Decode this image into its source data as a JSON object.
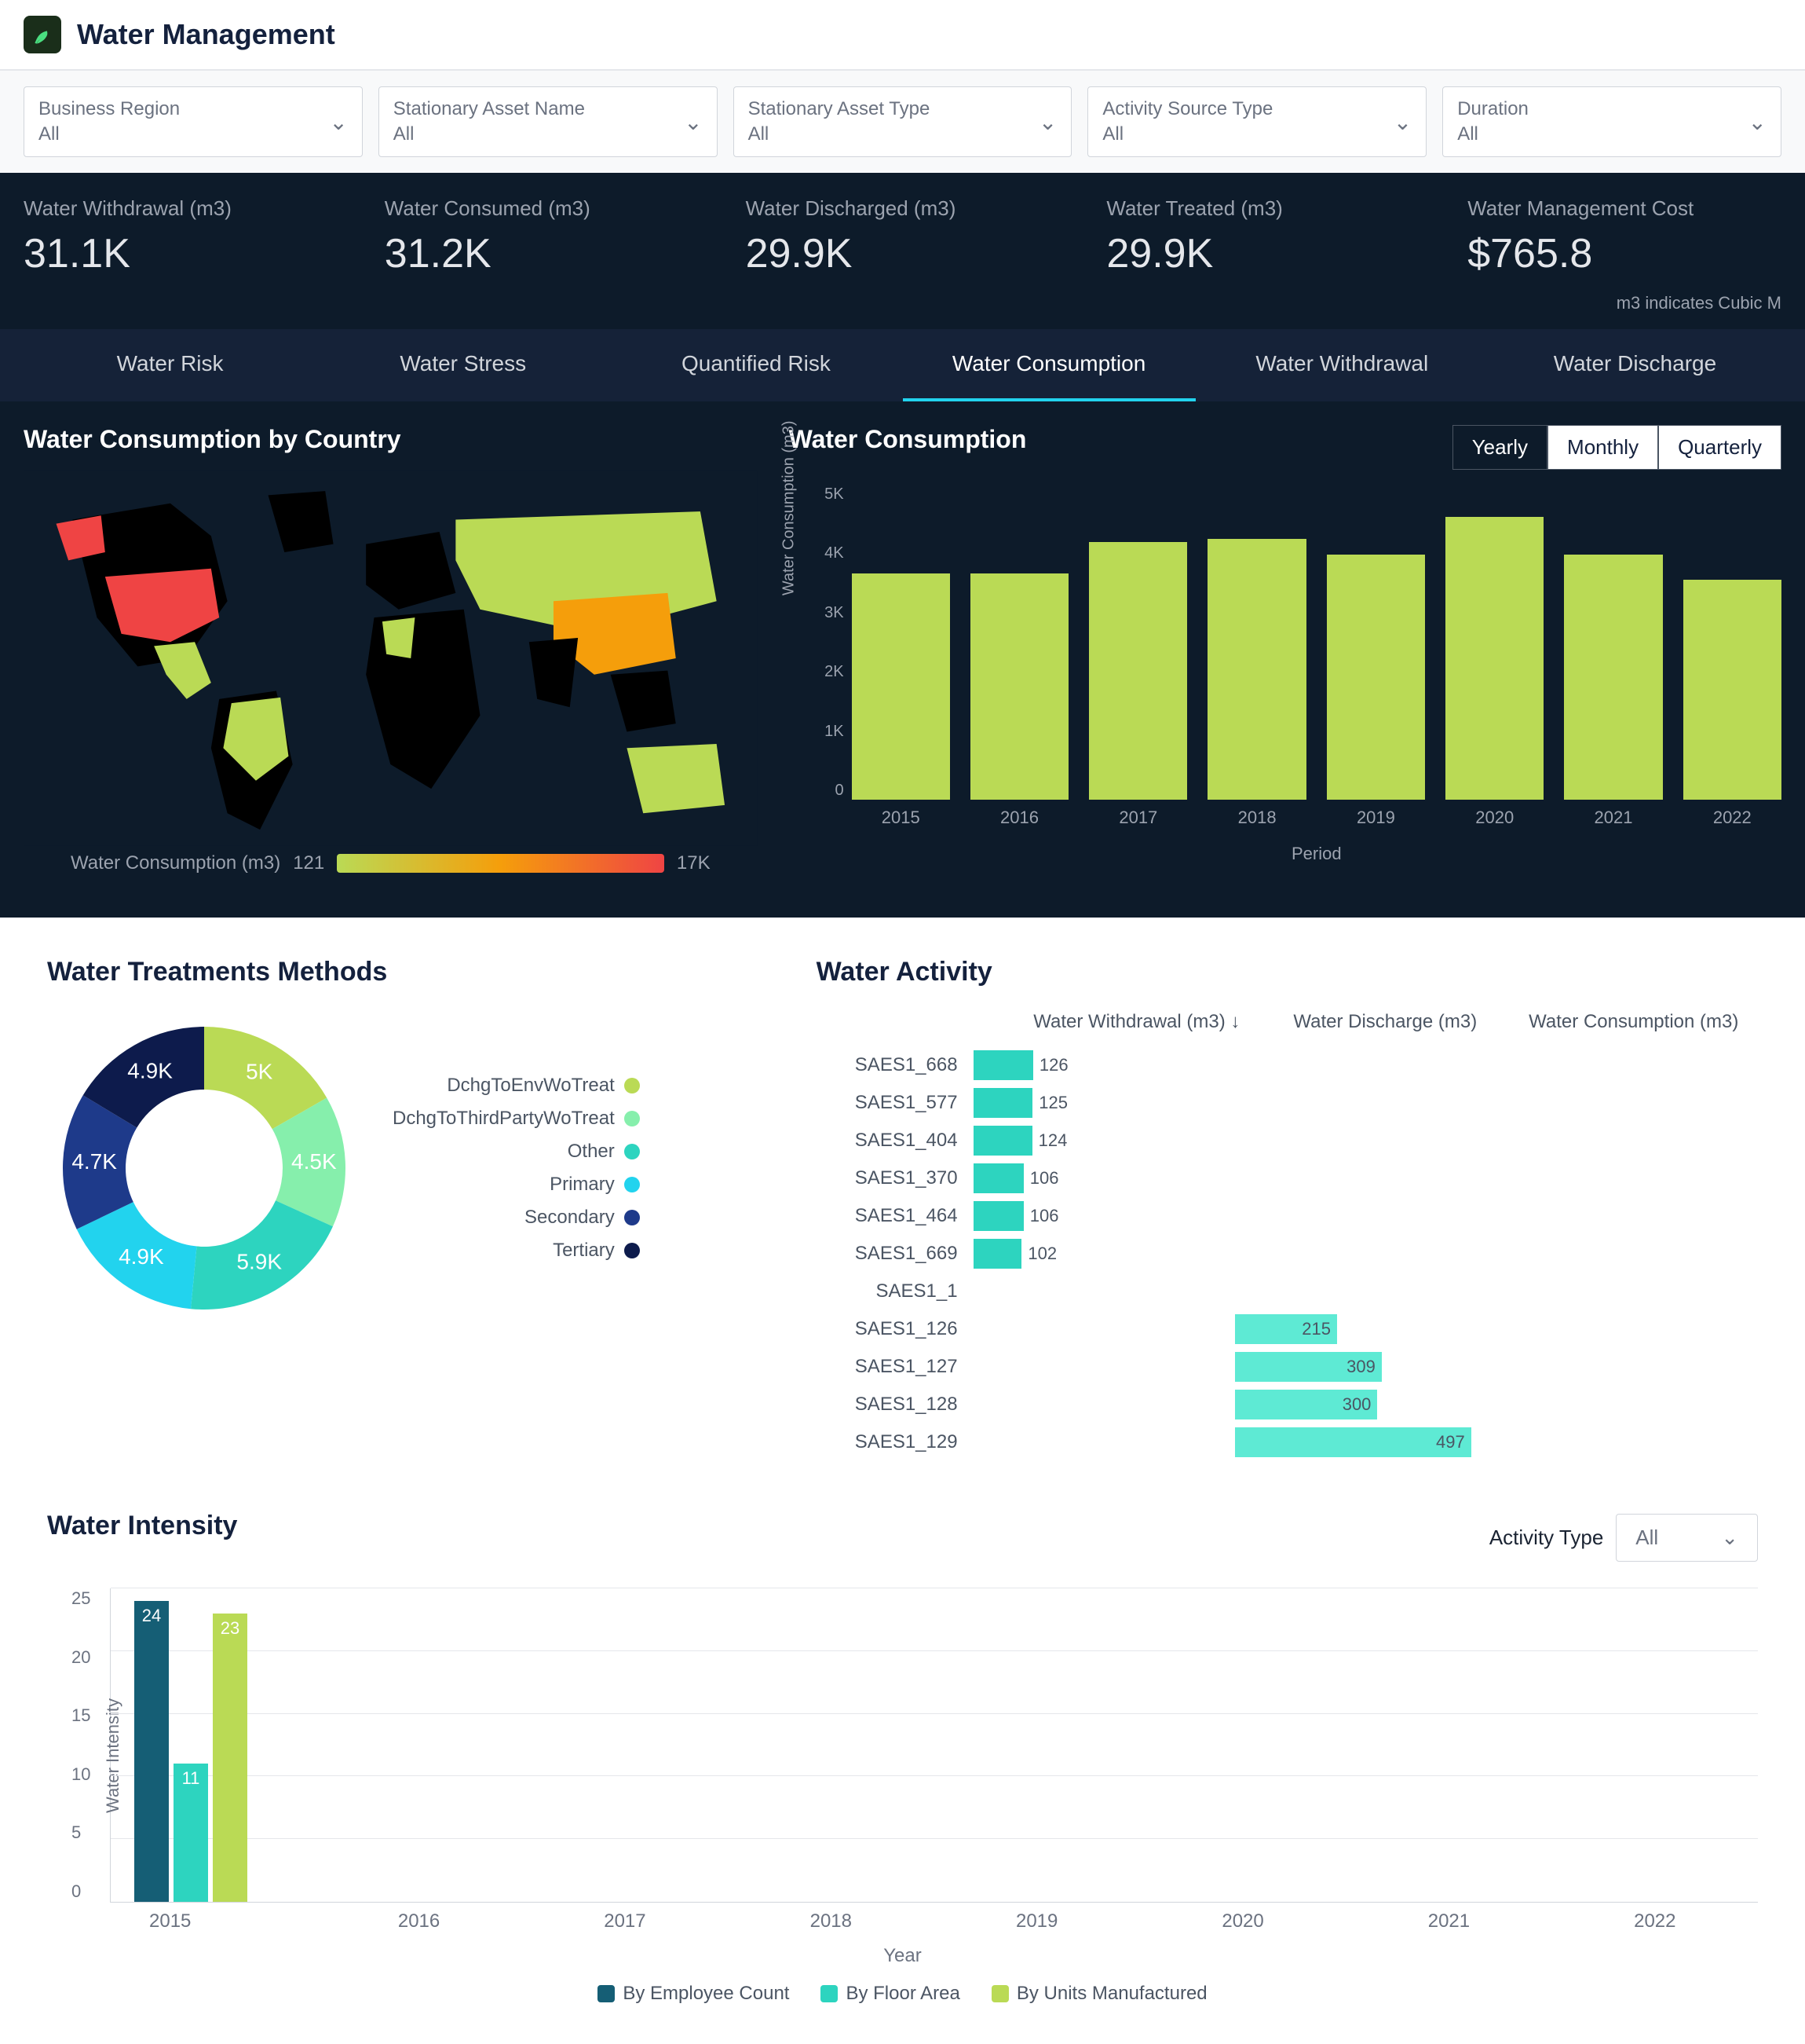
{
  "header": {
    "title": "Water Management"
  },
  "filters": [
    {
      "label": "Business Region",
      "value": "All"
    },
    {
      "label": "Stationary Asset Name",
      "value": "All"
    },
    {
      "label": "Stationary Asset Type",
      "value": "All"
    },
    {
      "label": "Activity Source Type",
      "value": "All"
    },
    {
      "label": "Duration",
      "value": "All"
    }
  ],
  "metrics": [
    {
      "label": "Water Withdrawal (m3)",
      "value": "31.1K"
    },
    {
      "label": "Water Consumed (m3)",
      "value": "31.2K"
    },
    {
      "label": "Water Discharged (m3)",
      "value": "29.9K"
    },
    {
      "label": "Water Treated (m3)",
      "value": "29.9K"
    },
    {
      "label": "Water Management Cost",
      "value": "$765.8"
    }
  ],
  "metric_note": "m3 indicates Cubic M",
  "tabs": [
    "Water Risk",
    "Water Stress",
    "Quantified Risk",
    "Water Consumption",
    "Water Withdrawal",
    "Water Discharge"
  ],
  "active_tab_index": 3,
  "map": {
    "title": "Water Consumption by Country",
    "legend_label": "Water Consumption (m3)",
    "legend_min": "121",
    "legend_max": "17K",
    "low_color": "#bada55",
    "mid_color": "#f59e0b",
    "high_color": "#ef4444",
    "empty_color": "#000000"
  },
  "consumption_chart": {
    "title": "Water Consumption",
    "type": "bar",
    "toggles": [
      "Yearly",
      "Monthly",
      "Quarterly"
    ],
    "active_toggle": 0,
    "bar_color": "#bada55",
    "ylabel": "Water Consumption (m3)",
    "xtitle": "Period",
    "ymax": 5000,
    "yticks": [
      "0",
      "1K",
      "2K",
      "3K",
      "4K",
      "5K"
    ],
    "categories": [
      "2015",
      "2016",
      "2017",
      "2018",
      "2019",
      "2020",
      "2021",
      "2022"
    ],
    "values": [
      3600,
      3600,
      4100,
      4150,
      3900,
      4500,
      3900,
      3500
    ]
  },
  "donut": {
    "title": "Water Treatments Methods",
    "slices": [
      {
        "label": "DchgToEnvWoTreat",
        "value": "5K",
        "num": 5.0,
        "color": "#bada55"
      },
      {
        "label": "DchgToThirdPartyWoTreat",
        "value": "4.5K",
        "num": 4.5,
        "color": "#86efac"
      },
      {
        "label": "Other",
        "value": "5.9K",
        "num": 5.9,
        "color": "#2dd4bf"
      },
      {
        "label": "Primary",
        "value": "4.9K",
        "num": 4.9,
        "color": "#22d3ee"
      },
      {
        "label": "Secondary",
        "value": "4.7K",
        "num": 4.7,
        "color": "#1e3a8a"
      },
      {
        "label": "Tertiary",
        "value": "4.9K",
        "num": 4.9,
        "color": "#0d1b4c"
      }
    ]
  },
  "activity": {
    "title": "Water Activity",
    "columns": [
      "Water Withdrawal (m3) ↓",
      "Water Discharge (m3)",
      "Water Consumption (m3)"
    ],
    "withdrawal_color": "#2dd4bf",
    "discharge_color": "#5eead4",
    "max_withdrawal": 550,
    "max_discharge": 550,
    "rows": [
      {
        "label": "SAES1_668",
        "withdrawal": 126
      },
      {
        "label": "SAES1_577",
        "withdrawal": 125
      },
      {
        "label": "SAES1_404",
        "withdrawal": 124
      },
      {
        "label": "SAES1_370",
        "withdrawal": 106
      },
      {
        "label": "SAES1_464",
        "withdrawal": 106
      },
      {
        "label": "SAES1_669",
        "withdrawal": 102
      },
      {
        "label": "SAES1_1"
      },
      {
        "label": "SAES1_126",
        "discharge": 215
      },
      {
        "label": "SAES1_127",
        "discharge": 309
      },
      {
        "label": "SAES1_128",
        "discharge": 300
      },
      {
        "label": "SAES1_129",
        "discharge": 497
      }
    ]
  },
  "intensity": {
    "title": "Water Intensity",
    "filter_label": "Activity Type",
    "filter_value": "All",
    "ylabel": "Water Intensity",
    "ymax": 25,
    "yticks": [
      "0",
      "5",
      "10",
      "15",
      "20",
      "25"
    ],
    "xtitle": "Year",
    "years": [
      "2015",
      "2016",
      "2017",
      "2018",
      "2019",
      "2020",
      "2021",
      "2022"
    ],
    "series": [
      {
        "label": "By Employee Count",
        "color": "#155e75",
        "values": [
          24,
          null,
          null,
          null,
          null,
          null,
          null,
          null
        ]
      },
      {
        "label": "By Floor Area",
        "color": "#2dd4bf",
        "values": [
          11,
          null,
          null,
          null,
          null,
          null,
          null,
          null
        ]
      },
      {
        "label": "By Units Manufactured",
        "color": "#bada55",
        "values": [
          23,
          null,
          null,
          null,
          null,
          null,
          null,
          null
        ]
      }
    ]
  }
}
